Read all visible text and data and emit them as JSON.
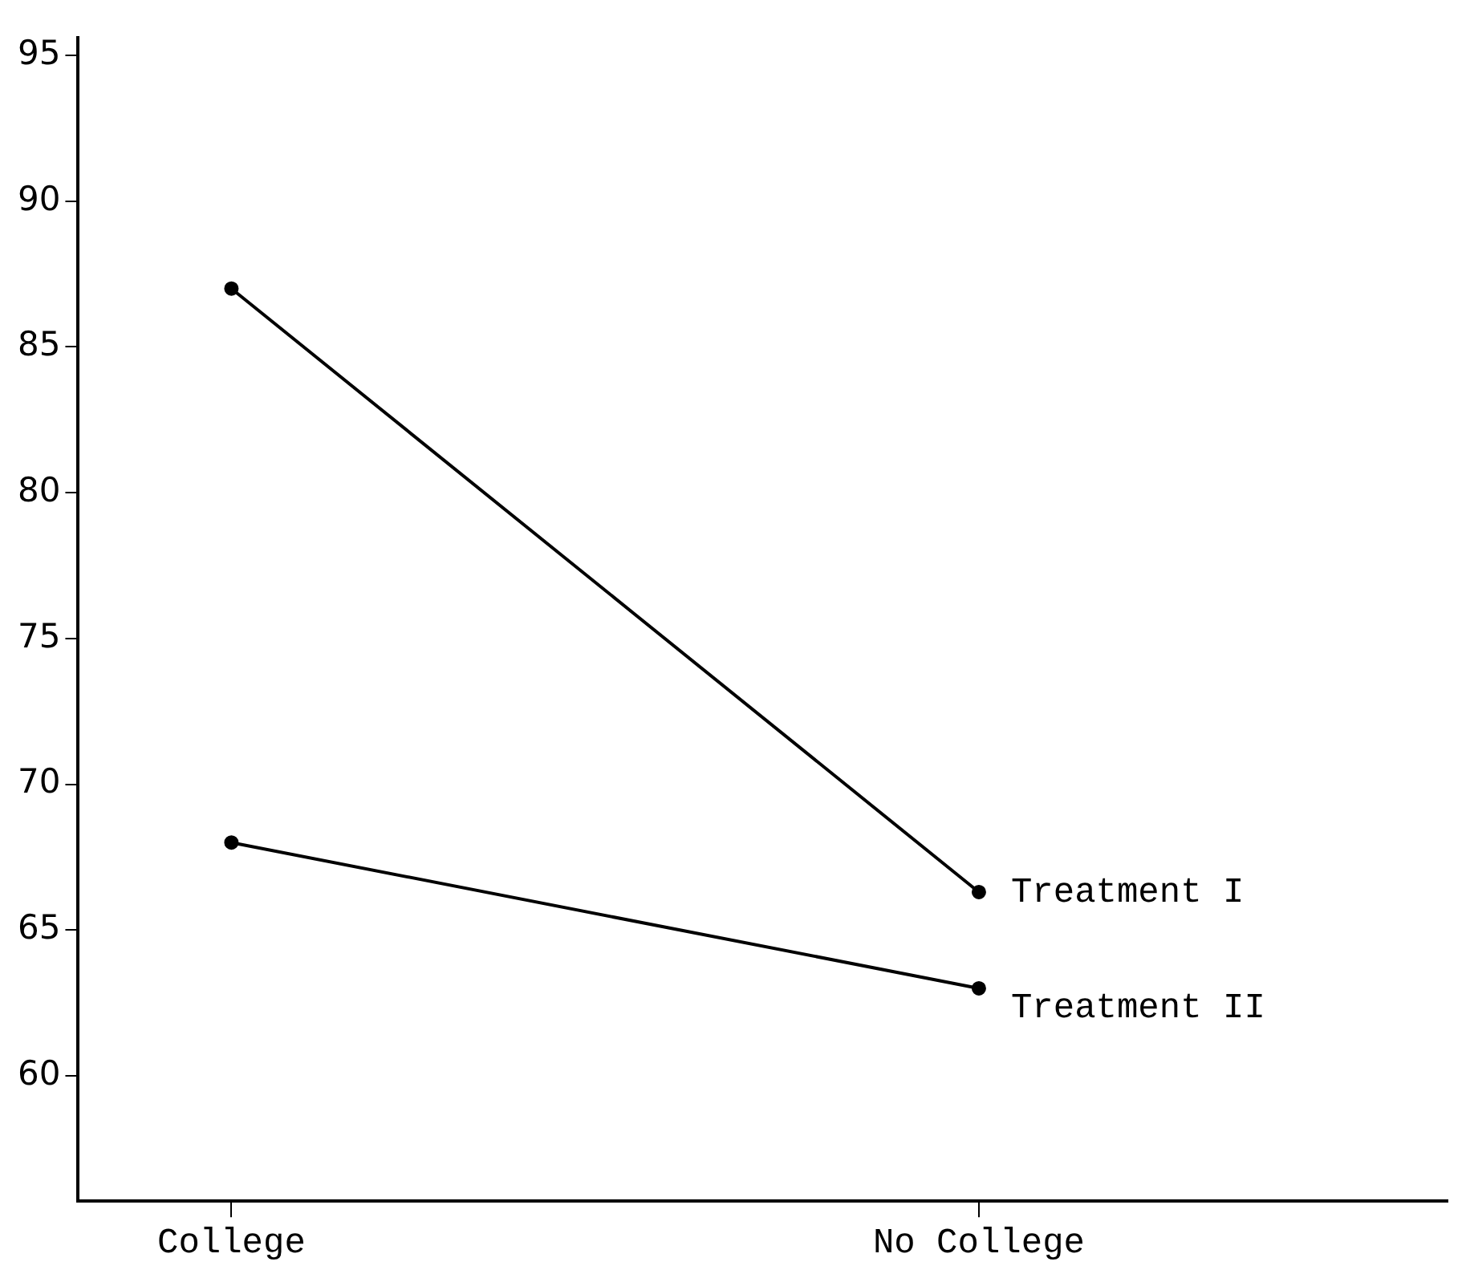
{
  "chart_data": {
    "type": "line",
    "categories": [
      "College",
      "No College"
    ],
    "series": [
      {
        "name": "Treatment I",
        "color": "#000000",
        "values": [
          87,
          66.3
        ]
      },
      {
        "name": "Treatment II",
        "color": "#000000",
        "values": [
          68,
          63
        ]
      }
    ],
    "ylim": [
      55.7,
      95.6
    ],
    "yticks": [
      60,
      65,
      70,
      75,
      80,
      85,
      90,
      95
    ],
    "grid": false,
    "legend": false,
    "marker": "circle",
    "line_style": "solid"
  }
}
